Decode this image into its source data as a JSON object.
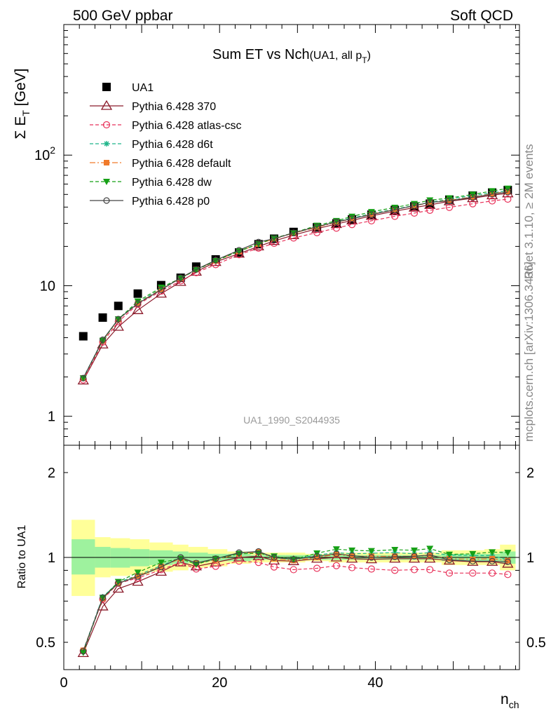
{
  "header": {
    "left": "500 GeV ppbar",
    "right": "Soft QCD"
  },
  "side_texts": {
    "rivet": "Rivet 3.1.10, ≥ 2M events",
    "mcplots": "mcplots.cern.ch [arXiv:1306.3436]"
  },
  "colors": {
    "data": "#000000",
    "p370": "#8b1a2a",
    "atlas": "#e8325a",
    "d6t": "#1fb58a",
    "default": "#f07a2a",
    "dw": "#16a016",
    "p0": "#444444",
    "band_inner": "#9ef29e",
    "band_outer": "#ffff99"
  },
  "chart_data": [
    {
      "type": "scatter",
      "title": "Sum ET vs Nch",
      "title_suffix": "(UA1, all p",
      "title_sub": "T",
      "title_close": ")",
      "ylabel_main": "Σ E",
      "ylabel_sub": "T",
      "ylabel_unit": " [GeV]",
      "yscale": "log",
      "ylim": [
        0.6,
        1000
      ],
      "xlim": [
        0,
        58.5
      ],
      "yticks": [
        {
          "v": 1,
          "label": "1"
        },
        {
          "v": 10,
          "label": "10"
        },
        {
          "v": 100,
          "label": "10",
          "sup": "2"
        }
      ],
      "watermark": "UA1_1990_S2044935",
      "x": [
        2.5,
        5,
        7,
        9.5,
        12.5,
        15,
        17,
        19.5,
        22.5,
        25,
        27,
        29.5,
        32.5,
        35,
        37,
        39.5,
        42.5,
        45,
        47,
        49.5,
        52.5,
        55,
        57
      ],
      "series": [
        {
          "key": "data",
          "name": "UA1",
          "marker": "square",
          "line": "none",
          "values": [
            4.1,
            5.7,
            7.0,
            8.7,
            10.1,
            11.5,
            14.0,
            15.9,
            18.0,
            20.8,
            22.9,
            25.8,
            28.0,
            30.0,
            32.2,
            35.0,
            38.0,
            40.5,
            42.5,
            45.6,
            49.0,
            51.7,
            54.0
          ]
        },
        {
          "key": "p370",
          "name": "Pythia 6.428 370",
          "marker": "triangle-open",
          "line": "solid",
          "values": [
            1.88,
            3.55,
            4.85,
            6.5,
            8.7,
            10.7,
            12.8,
            15.2,
            17.6,
            20.0,
            22.0,
            24.4,
            27.3,
            29.7,
            31.6,
            34.3,
            37.2,
            39.6,
            41.6,
            44.3,
            46.8,
            49.3,
            51.0
          ]
        },
        {
          "key": "atlas",
          "name": "Pythia 6.428 atlas-csc",
          "marker": "circle-open",
          "line": "dashed",
          "values": [
            1.9,
            3.7,
            5.3,
            7.2,
            9.1,
            10.9,
            12.6,
            14.5,
            17.3,
            19.4,
            21.1,
            23.2,
            25.5,
            27.6,
            29.4,
            31.4,
            34.0,
            36.0,
            37.8,
            39.8,
            42.4,
            44.6,
            46.0
          ]
        },
        {
          "key": "d6t",
          "name": "Pythia 6.428 d6t",
          "marker": "star",
          "line": "dashed",
          "values": [
            1.97,
            3.85,
            5.55,
            7.4,
            9.5,
            11.4,
            13.3,
            15.5,
            18.3,
            20.8,
            23.0,
            25.3,
            28.2,
            30.9,
            32.9,
            35.7,
            38.6,
            41.1,
            43.6,
            46.0,
            49.0,
            51.5,
            53.3
          ]
        },
        {
          "key": "default",
          "name": "Pythia 6.428 default",
          "marker": "square-small",
          "line": "dashdot",
          "values": [
            1.96,
            3.8,
            5.5,
            7.35,
            9.4,
            11.4,
            13.3,
            15.5,
            18.3,
            20.9,
            22.8,
            25.3,
            28.0,
            30.6,
            32.5,
            35.3,
            38.2,
            40.9,
            43.2,
            45.2,
            47.8,
            50.6,
            52.6
          ]
        },
        {
          "key": "dw",
          "name": "Pythia 6.428 dw",
          "marker": "triangle-down",
          "line": "dashed",
          "values": [
            1.96,
            3.8,
            5.55,
            7.6,
            9.7,
            11.4,
            13.2,
            15.5,
            18.4,
            20.9,
            23.1,
            25.4,
            28.9,
            31.4,
            33.9,
            36.8,
            39.7,
            42.4,
            45.2,
            46.9,
            50.0,
            53.1,
            55.6
          ]
        },
        {
          "key": "p0",
          "name": "Pythia 6.428 p0",
          "marker": "circle-open-small",
          "line": "solid",
          "values": [
            1.96,
            3.85,
            5.55,
            7.3,
            9.3,
            11.5,
            13.3,
            15.7,
            18.7,
            21.6,
            22.9,
            25.4,
            28.3,
            30.8,
            32.6,
            35.0,
            38.2,
            41.0,
            43.4,
            44.7,
            47.5,
            50.3,
            52.1
          ]
        }
      ]
    },
    {
      "type": "line",
      "ylabel": "Ratio to UA1",
      "xlabel_main": "n",
      "xlabel_sub": "ch",
      "yscale": "log",
      "ylim": [
        0.4,
        2.5
      ],
      "xlim": [
        0,
        58.5
      ],
      "xticks": [
        0,
        20,
        40
      ],
      "yticks": [
        {
          "v": 0.5,
          "label": "0.5"
        },
        {
          "v": 1,
          "label": "1"
        },
        {
          "v": 2,
          "label": "2"
        }
      ],
      "x": [
        2.5,
        5,
        7,
        9.5,
        12.5,
        15,
        17,
        19.5,
        22.5,
        25,
        27,
        29.5,
        32.5,
        35,
        37,
        39.5,
        42.5,
        45,
        47,
        49.5,
        52.5,
        55,
        57
      ],
      "bands": {
        "edges": [
          1,
          4,
          6,
          8.5,
          11,
          14,
          16,
          18.5,
          21,
          24,
          26,
          28.5,
          31,
          34,
          36,
          38.5,
          41,
          44,
          46,
          48.5,
          51,
          54,
          56,
          58
        ],
        "outer_lo": [
          0.73,
          0.85,
          0.86,
          0.87,
          0.89,
          0.9,
          0.92,
          0.93,
          0.95,
          0.96,
          0.96,
          0.96,
          0.97,
          0.96,
          0.96,
          0.96,
          0.96,
          0.96,
          0.96,
          0.94,
          0.94,
          0.94,
          0.9
        ],
        "outer_hi": [
          1.36,
          1.18,
          1.17,
          1.16,
          1.13,
          1.11,
          1.09,
          1.07,
          1.05,
          1.04,
          1.04,
          1.04,
          1.03,
          1.04,
          1.04,
          1.04,
          1.04,
          1.04,
          1.04,
          1.06,
          1.06,
          1.07,
          1.11
        ],
        "inner_lo": [
          0.87,
          0.92,
          0.92,
          0.93,
          0.94,
          0.95,
          0.96,
          0.97,
          0.97,
          0.98,
          0.98,
          0.98,
          0.98,
          0.98,
          0.98,
          0.98,
          0.98,
          0.98,
          0.98,
          0.97,
          0.97,
          0.97,
          0.95
        ],
        "inner_hi": [
          1.16,
          1.09,
          1.08,
          1.07,
          1.06,
          1.05,
          1.04,
          1.03,
          1.03,
          1.02,
          1.02,
          1.02,
          1.02,
          1.02,
          1.02,
          1.02,
          1.02,
          1.02,
          1.02,
          1.03,
          1.03,
          1.03,
          1.05
        ]
      },
      "series": [
        {
          "key": "p370",
          "values": [
            0.458,
            0.67,
            0.775,
            0.82,
            0.89,
            0.96,
            0.93,
            0.96,
            1.0,
            1.01,
            0.975,
            0.97,
            0.99,
            1.0,
            0.99,
            0.985,
            0.99,
            0.99,
            0.99,
            0.975,
            0.965,
            0.965,
            0.95
          ]
        },
        {
          "key": "atlas",
          "values": [
            0.466,
            0.71,
            0.81,
            0.845,
            0.905,
            0.96,
            0.91,
            0.93,
            0.97,
            0.96,
            0.925,
            0.905,
            0.915,
            0.935,
            0.92,
            0.91,
            0.9,
            0.905,
            0.905,
            0.88,
            0.88,
            0.88,
            0.87
          ]
        },
        {
          "key": "d6t",
          "values": [
            0.468,
            0.725,
            0.815,
            0.865,
            0.935,
            0.995,
            0.955,
            0.99,
            1.035,
            1.045,
            1.0,
            0.985,
            1.02,
            1.04,
            1.03,
            1.035,
            1.04,
            1.03,
            1.04,
            1.02,
            1.015,
            1.015,
            0.98
          ]
        },
        {
          "key": "default",
          "values": [
            0.468,
            0.715,
            0.81,
            0.86,
            0.93,
            0.99,
            0.955,
            0.98,
            1.03,
            1.045,
            0.99,
            0.975,
            1.0,
            1.025,
            1.01,
            1.01,
            1.01,
            1.01,
            1.015,
            0.99,
            0.985,
            0.99,
            0.975
          ]
        },
        {
          "key": "dw",
          "values": [
            0.46,
            0.72,
            0.82,
            0.885,
            0.96,
            0.99,
            0.945,
            0.99,
            1.03,
            1.035,
            1.01,
            0.985,
            1.035,
            1.07,
            1.06,
            1.055,
            1.065,
            1.06,
            1.075,
            1.025,
            1.03,
            1.045,
            1.04
          ]
        },
        {
          "key": "p0",
          "values": [
            0.465,
            0.72,
            0.81,
            0.855,
            0.925,
            1.0,
            0.955,
            0.99,
            1.04,
            1.05,
            1.0,
            0.985,
            1.01,
            1.03,
            1.015,
            1.0,
            1.005,
            1.01,
            1.02,
            0.98,
            0.97,
            0.97,
            0.965
          ]
        }
      ]
    }
  ]
}
